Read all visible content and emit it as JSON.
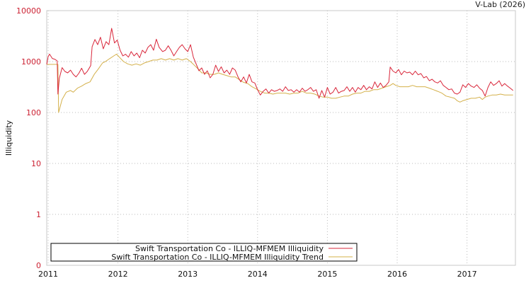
{
  "credit": "V-Lab (2026)",
  "chart_data": {
    "type": "line",
    "title": "",
    "xlabel": "",
    "ylabel": "Illiquidity",
    "yscale": "log",
    "ylim": [
      0,
      10000
    ],
    "xlim": [
      2011.0,
      2017.7
    ],
    "y_ticks": [
      "10000",
      "1000",
      "100",
      "10",
      "1",
      "0"
    ],
    "x_ticks": [
      "2011",
      "2012",
      "2013",
      "2014",
      "2015",
      "2016",
      "2017"
    ],
    "grid": true,
    "legend_position": "bottom-left inside",
    "legend": [
      {
        "label": "Swift Transportation Co - ILLIQ-MFMEM Illiquidity",
        "color": "#d9263a"
      },
      {
        "label": "Swift Transportation Co - ILLIQ-MFMEM Illiquidity Trend",
        "color": "#d4b04a"
      }
    ],
    "series": [
      {
        "name": "Swift Transportation Co - ILLIQ-MFMEM Illiquidity",
        "color": "#d9263a",
        "points": [
          [
            2010.98,
            880
          ],
          [
            2011.0,
            1250
          ],
          [
            2011.02,
            1400
          ],
          [
            2011.06,
            1150
          ],
          [
            2011.1,
            1100
          ],
          [
            2011.13,
            1030
          ],
          [
            2011.14,
            230
          ],
          [
            2011.16,
            470
          ],
          [
            2011.2,
            760
          ],
          [
            2011.24,
            640
          ],
          [
            2011.28,
            600
          ],
          [
            2011.32,
            680
          ],
          [
            2011.36,
            560
          ],
          [
            2011.4,
            500
          ],
          [
            2011.44,
            590
          ],
          [
            2011.48,
            740
          ],
          [
            2011.52,
            560
          ],
          [
            2011.56,
            640
          ],
          [
            2011.61,
            830
          ],
          [
            2011.63,
            1950
          ],
          [
            2011.67,
            2710
          ],
          [
            2011.71,
            2150
          ],
          [
            2011.75,
            3000
          ],
          [
            2011.79,
            1780
          ],
          [
            2011.83,
            2460
          ],
          [
            2011.87,
            2150
          ],
          [
            2011.91,
            4500
          ],
          [
            2011.95,
            2310
          ],
          [
            2011.99,
            2640
          ],
          [
            2012.03,
            1670
          ],
          [
            2012.07,
            1290
          ],
          [
            2012.11,
            1390
          ],
          [
            2012.15,
            1220
          ],
          [
            2012.19,
            1570
          ],
          [
            2012.23,
            1290
          ],
          [
            2012.27,
            1470
          ],
          [
            2012.31,
            1190
          ],
          [
            2012.35,
            1670
          ],
          [
            2012.39,
            1470
          ],
          [
            2012.43,
            1900
          ],
          [
            2012.47,
            2150
          ],
          [
            2012.51,
            1670
          ],
          [
            2012.55,
            2750
          ],
          [
            2012.59,
            1900
          ],
          [
            2012.64,
            1570
          ],
          [
            2012.68,
            1670
          ],
          [
            2012.72,
            2040
          ],
          [
            2012.76,
            1670
          ],
          [
            2012.8,
            1290
          ],
          [
            2012.84,
            1570
          ],
          [
            2012.88,
            1900
          ],
          [
            2012.92,
            2150
          ],
          [
            2012.96,
            1780
          ],
          [
            2013.0,
            1570
          ],
          [
            2013.04,
            2150
          ],
          [
            2013.08,
            1220
          ],
          [
            2013.12,
            900
          ],
          [
            2013.16,
            660
          ],
          [
            2013.2,
            750
          ],
          [
            2013.24,
            560
          ],
          [
            2013.28,
            660
          ],
          [
            2013.32,
            480
          ],
          [
            2013.36,
            560
          ],
          [
            2013.4,
            850
          ],
          [
            2013.44,
            640
          ],
          [
            2013.48,
            790
          ],
          [
            2013.52,
            600
          ],
          [
            2013.56,
            680
          ],
          [
            2013.6,
            560
          ],
          [
            2013.64,
            750
          ],
          [
            2013.68,
            680
          ],
          [
            2013.72,
            500
          ],
          [
            2013.76,
            400
          ],
          [
            2013.8,
            500
          ],
          [
            2013.84,
            380
          ],
          [
            2013.88,
            560
          ],
          [
            2013.92,
            400
          ],
          [
            2013.96,
            380
          ],
          [
            2014.0,
            280
          ],
          [
            2014.04,
            220
          ],
          [
            2014.08,
            260
          ],
          [
            2014.12,
            290
          ],
          [
            2014.16,
            240
          ],
          [
            2014.2,
            280
          ],
          [
            2014.24,
            260
          ],
          [
            2014.28,
            270
          ],
          [
            2014.32,
            290
          ],
          [
            2014.36,
            260
          ],
          [
            2014.4,
            320
          ],
          [
            2014.44,
            270
          ],
          [
            2014.48,
            280
          ],
          [
            2014.52,
            250
          ],
          [
            2014.56,
            280
          ],
          [
            2014.6,
            250
          ],
          [
            2014.64,
            300
          ],
          [
            2014.68,
            260
          ],
          [
            2014.72,
            280
          ],
          [
            2014.76,
            310
          ],
          [
            2014.8,
            260
          ],
          [
            2014.84,
            280
          ],
          [
            2014.88,
            190
          ],
          [
            2014.92,
            270
          ],
          [
            2014.96,
            200
          ],
          [
            2015.0,
            310
          ],
          [
            2015.04,
            230
          ],
          [
            2015.08,
            250
          ],
          [
            2015.12,
            310
          ],
          [
            2015.16,
            240
          ],
          [
            2015.2,
            260
          ],
          [
            2015.24,
            270
          ],
          [
            2015.28,
            320
          ],
          [
            2015.32,
            260
          ],
          [
            2015.36,
            310
          ],
          [
            2015.4,
            250
          ],
          [
            2015.44,
            310
          ],
          [
            2015.48,
            280
          ],
          [
            2015.52,
            340
          ],
          [
            2015.56,
            280
          ],
          [
            2015.6,
            320
          ],
          [
            2015.64,
            290
          ],
          [
            2015.68,
            400
          ],
          [
            2015.72,
            310
          ],
          [
            2015.76,
            380
          ],
          [
            2015.8,
            310
          ],
          [
            2015.84,
            340
          ],
          [
            2015.88,
            400
          ],
          [
            2015.9,
            780
          ],
          [
            2015.94,
            650
          ],
          [
            2015.98,
            600
          ],
          [
            2016.02,
            700
          ],
          [
            2016.06,
            550
          ],
          [
            2016.1,
            650
          ],
          [
            2016.14,
            600
          ],
          [
            2016.18,
            620
          ],
          [
            2016.22,
            550
          ],
          [
            2016.26,
            650
          ],
          [
            2016.3,
            550
          ],
          [
            2016.34,
            580
          ],
          [
            2016.38,
            480
          ],
          [
            2016.42,
            510
          ],
          [
            2016.46,
            420
          ],
          [
            2016.5,
            450
          ],
          [
            2016.54,
            400
          ],
          [
            2016.58,
            380
          ],
          [
            2016.62,
            420
          ],
          [
            2016.66,
            340
          ],
          [
            2016.7,
            310
          ],
          [
            2016.74,
            280
          ],
          [
            2016.78,
            290
          ],
          [
            2016.82,
            240
          ],
          [
            2016.86,
            230
          ],
          [
            2016.9,
            250
          ],
          [
            2016.94,
            350
          ],
          [
            2016.98,
            310
          ],
          [
            2017.02,
            370
          ],
          [
            2017.06,
            330
          ],
          [
            2017.1,
            310
          ],
          [
            2017.14,
            350
          ],
          [
            2017.18,
            300
          ],
          [
            2017.22,
            270
          ],
          [
            2017.26,
            210
          ],
          [
            2017.3,
            310
          ],
          [
            2017.34,
            400
          ],
          [
            2017.38,
            340
          ],
          [
            2017.42,
            370
          ],
          [
            2017.46,
            420
          ],
          [
            2017.5,
            330
          ],
          [
            2017.54,
            370
          ],
          [
            2017.58,
            330
          ],
          [
            2017.62,
            300
          ],
          [
            2017.66,
            270
          ]
        ]
      },
      {
        "name": "Swift Transportation Co - ILLIQ-MFMEM Illiquidity Trend",
        "color": "#d4b04a",
        "points": [
          [
            2010.98,
            880
          ],
          [
            2011.14,
            880
          ],
          [
            2011.15,
            100
          ],
          [
            2011.2,
            180
          ],
          [
            2011.26,
            250
          ],
          [
            2011.32,
            270
          ],
          [
            2011.36,
            250
          ],
          [
            2011.42,
            300
          ],
          [
            2011.48,
            330
          ],
          [
            2011.54,
            370
          ],
          [
            2011.6,
            400
          ],
          [
            2011.66,
            560
          ],
          [
            2011.72,
            720
          ],
          [
            2011.78,
            940
          ],
          [
            2011.82,
            1000
          ],
          [
            2011.88,
            1140
          ],
          [
            2011.94,
            1290
          ],
          [
            2011.98,
            1400
          ],
          [
            2012.02,
            1220
          ],
          [
            2012.08,
            1000
          ],
          [
            2012.14,
            900
          ],
          [
            2012.2,
            850
          ],
          [
            2012.26,
            900
          ],
          [
            2012.32,
            850
          ],
          [
            2012.38,
            940
          ],
          [
            2012.44,
            1000
          ],
          [
            2012.5,
            1070
          ],
          [
            2012.56,
            1070
          ],
          [
            2012.62,
            1140
          ],
          [
            2012.68,
            1070
          ],
          [
            2012.74,
            1140
          ],
          [
            2012.8,
            1070
          ],
          [
            2012.86,
            1140
          ],
          [
            2012.92,
            1070
          ],
          [
            2012.98,
            1140
          ],
          [
            2013.04,
            1000
          ],
          [
            2013.1,
            830
          ],
          [
            2013.16,
            690
          ],
          [
            2013.2,
            600
          ],
          [
            2013.26,
            600
          ],
          [
            2013.32,
            560
          ],
          [
            2013.38,
            560
          ],
          [
            2013.44,
            600
          ],
          [
            2013.5,
            560
          ],
          [
            2013.56,
            530
          ],
          [
            2013.62,
            500
          ],
          [
            2013.68,
            500
          ],
          [
            2013.74,
            440
          ],
          [
            2013.8,
            390
          ],
          [
            2013.86,
            370
          ],
          [
            2013.92,
            320
          ],
          [
            2013.98,
            290
          ],
          [
            2014.04,
            260
          ],
          [
            2014.1,
            240
          ],
          [
            2014.16,
            240
          ],
          [
            2014.22,
            230
          ],
          [
            2014.28,
            240
          ],
          [
            2014.34,
            240
          ],
          [
            2014.4,
            240
          ],
          [
            2014.46,
            230
          ],
          [
            2014.52,
            240
          ],
          [
            2014.58,
            240
          ],
          [
            2014.64,
            260
          ],
          [
            2014.7,
            240
          ],
          [
            2014.76,
            240
          ],
          [
            2014.82,
            230
          ],
          [
            2014.88,
            210
          ],
          [
            2014.94,
            200
          ],
          [
            2015.0,
            200
          ],
          [
            2015.06,
            190
          ],
          [
            2015.12,
            190
          ],
          [
            2015.18,
            200
          ],
          [
            2015.24,
            210
          ],
          [
            2015.3,
            210
          ],
          [
            2015.36,
            230
          ],
          [
            2015.42,
            240
          ],
          [
            2015.48,
            240
          ],
          [
            2015.54,
            260
          ],
          [
            2015.6,
            260
          ],
          [
            2015.66,
            280
          ],
          [
            2015.72,
            280
          ],
          [
            2015.78,
            300
          ],
          [
            2015.84,
            320
          ],
          [
            2015.9,
            340
          ],
          [
            2015.94,
            370
          ],
          [
            2015.98,
            340
          ],
          [
            2016.04,
            320
          ],
          [
            2016.1,
            320
          ],
          [
            2016.16,
            320
          ],
          [
            2016.22,
            340
          ],
          [
            2016.28,
            320
          ],
          [
            2016.34,
            320
          ],
          [
            2016.4,
            320
          ],
          [
            2016.46,
            300
          ],
          [
            2016.52,
            280
          ],
          [
            2016.58,
            260
          ],
          [
            2016.64,
            240
          ],
          [
            2016.7,
            210
          ],
          [
            2016.76,
            200
          ],
          [
            2016.82,
            190
          ],
          [
            2016.86,
            170
          ],
          [
            2016.9,
            160
          ],
          [
            2016.94,
            170
          ],
          [
            2017.0,
            180
          ],
          [
            2017.06,
            190
          ],
          [
            2017.12,
            190
          ],
          [
            2017.18,
            200
          ],
          [
            2017.22,
            180
          ],
          [
            2017.26,
            200
          ],
          [
            2017.3,
            210
          ],
          [
            2017.36,
            220
          ],
          [
            2017.42,
            220
          ],
          [
            2017.48,
            230
          ],
          [
            2017.54,
            220
          ],
          [
            2017.6,
            220
          ],
          [
            2017.66,
            220
          ]
        ]
      }
    ]
  }
}
